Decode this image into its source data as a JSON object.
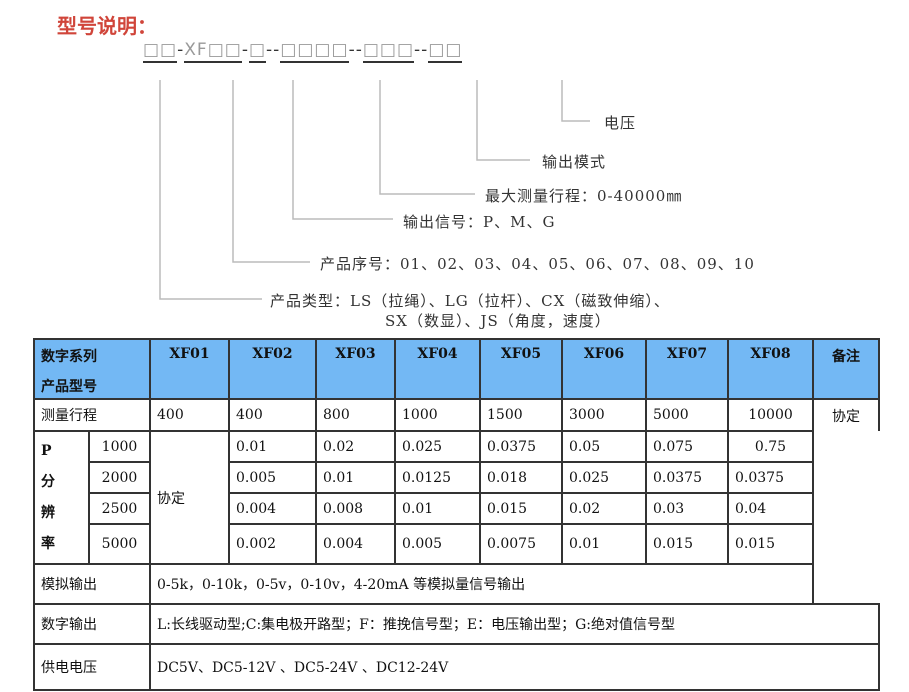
{
  "title": "型号说明：",
  "code": {
    "segments": [
      "□□",
      "XF□□",
      "□",
      "□□□□",
      "□□□",
      "□□"
    ],
    "separators": [
      "-",
      "-",
      "--",
      "--",
      "--"
    ]
  },
  "labels": {
    "voltage": "电压",
    "output_mode": "输出模式",
    "max_range": "最大测量行程：0-40000㎜",
    "output_signal": "输出信号：P、M、G",
    "serial": "产品序号：01、02、03、04、05、06、07、08、09、10",
    "type_line1": "产品类型：LS（拉绳）、LG（拉杆）、CX（磁致伸缩）、",
    "type_line2": "SX（数显）、JS（角度，速度）"
  },
  "table": {
    "header_label_1": "数字系列",
    "header_label_2": "产品型号",
    "models": [
      "XF01",
      "XF02",
      "XF03",
      "XF04",
      "XF05",
      "XF06",
      "XF07",
      "XF08"
    ],
    "remark_header": "备注",
    "range_label": "测量行程",
    "ranges": [
      "400",
      "400",
      "800",
      "1000",
      "1500",
      "3000",
      "5000",
      "10000"
    ],
    "remark_value": "协定",
    "resolution_label": [
      "P",
      "分",
      "辨",
      "率"
    ],
    "xf01_resolution": "协定",
    "resolution_rows": [
      {
        "p": "1000",
        "values": [
          "0.01",
          "0.02",
          "0.025",
          "0.0375",
          "0.05",
          "0.075",
          "0.75"
        ]
      },
      {
        "p": "2000",
        "values": [
          "0.005",
          "0.01",
          "0.0125",
          "0.018",
          "0.025",
          "0.0375",
          "0.0375"
        ]
      },
      {
        "p": "2500",
        "values": [
          "0.004",
          "0.008",
          "0.01",
          "0.015",
          "0.02",
          "0.03",
          "0.04"
        ]
      },
      {
        "p": "5000",
        "values": [
          "0.002",
          "0.004",
          "0.005",
          "0.0075",
          "0.01",
          "0.015",
          "0.015"
        ]
      }
    ],
    "analog_label": "模拟输出",
    "analog_value": "0-5k，0-10k，0-5v，0-10v，4-20mA 等模拟量信号输出",
    "digital_label": "数字输出",
    "digital_value": "L:长线驱动型;C:集电极开路型；F：推挽信号型；E：电压输出型；G:绝对值信号型",
    "power_label": "供电电压",
    "power_value": "DC5V、DC5-12V 、DC5-24V 、DC12-24V"
  },
  "colors": {
    "title": "#d0453a",
    "header_bg": "#73b8f4"
  }
}
